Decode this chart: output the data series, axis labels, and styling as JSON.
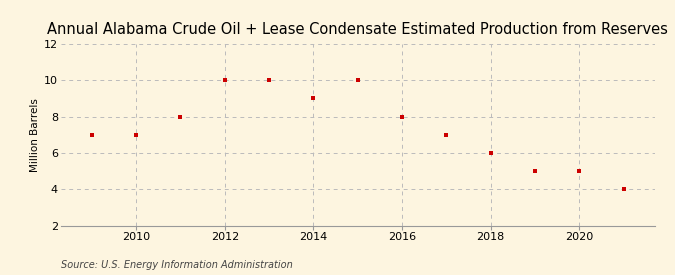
{
  "title": "Annual Alabama Crude Oil + Lease Condensate Estimated Production from Reserves",
  "ylabel": "Million Barrels",
  "source": "Source: U.S. Energy Information Administration",
  "background_color": "#fdf5e0",
  "plot_bg_color": "#fdf5e0",
  "x_values": [
    2009,
    2010,
    2011,
    2012,
    2013,
    2014,
    2015,
    2016,
    2017,
    2018,
    2019,
    2020,
    2021
  ],
  "y_values": [
    7.0,
    7.0,
    8.0,
    10.0,
    10.0,
    9.0,
    10.0,
    8.0,
    7.0,
    6.0,
    5.0,
    5.0,
    4.0
  ],
  "marker_color": "#cc0000",
  "marker": "s",
  "marker_size": 3.5,
  "ylim": [
    2,
    12
  ],
  "yticks": [
    2,
    4,
    6,
    8,
    10,
    12
  ],
  "xlim": [
    2008.3,
    2021.7
  ],
  "xticks": [
    2010,
    2012,
    2014,
    2016,
    2018,
    2020
  ],
  "grid_color": "#bbbbbb",
  "grid_style": "--",
  "title_fontsize": 10.5,
  "ylabel_fontsize": 7.5,
  "tick_fontsize": 8,
  "source_fontsize": 7
}
